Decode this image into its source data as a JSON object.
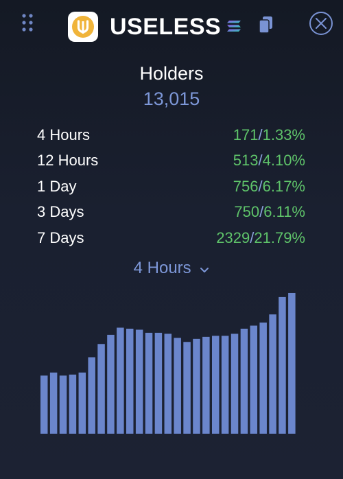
{
  "header": {
    "token_name": "USELESS",
    "logo_letter": "U",
    "logo_color": "#f0b43a",
    "drag_icon": "drag-dots-icon",
    "chain_icon": "solana-icon",
    "copy_icon": "copy-icon",
    "close_icon": "close-circle-icon"
  },
  "holders": {
    "title": "Holders",
    "count": "13,015"
  },
  "stats": [
    {
      "label": "4 Hours",
      "count": "171",
      "sep": "/",
      "percent": "1.33%"
    },
    {
      "label": "12 Hours",
      "count": "513",
      "sep": "/",
      "percent": "4.10%"
    },
    {
      "label": "1 Day",
      "count": "756",
      "sep": "/",
      "percent": "6.17%"
    },
    {
      "label": "3 Days",
      "count": "750",
      "sep": "/",
      "percent": "6.11%"
    },
    {
      "label": "7 Days",
      "count": "2329",
      "sep": "/",
      "percent": "21.79%"
    }
  ],
  "period_select": {
    "selected": "4 Hours"
  },
  "colors": {
    "accent": "#7d97d8",
    "positive": "#5fc46a",
    "bar": "#6b86cc"
  },
  "chart_data": {
    "type": "bar",
    "values": [
      57,
      60,
      57,
      58,
      60,
      75,
      88,
      97,
      104,
      103,
      102,
      99,
      99,
      98,
      94,
      90,
      93,
      95,
      96,
      96,
      98,
      103,
      106,
      109,
      117,
      134,
      138
    ],
    "ylim": [
      0,
      140
    ],
    "grid": false
  }
}
